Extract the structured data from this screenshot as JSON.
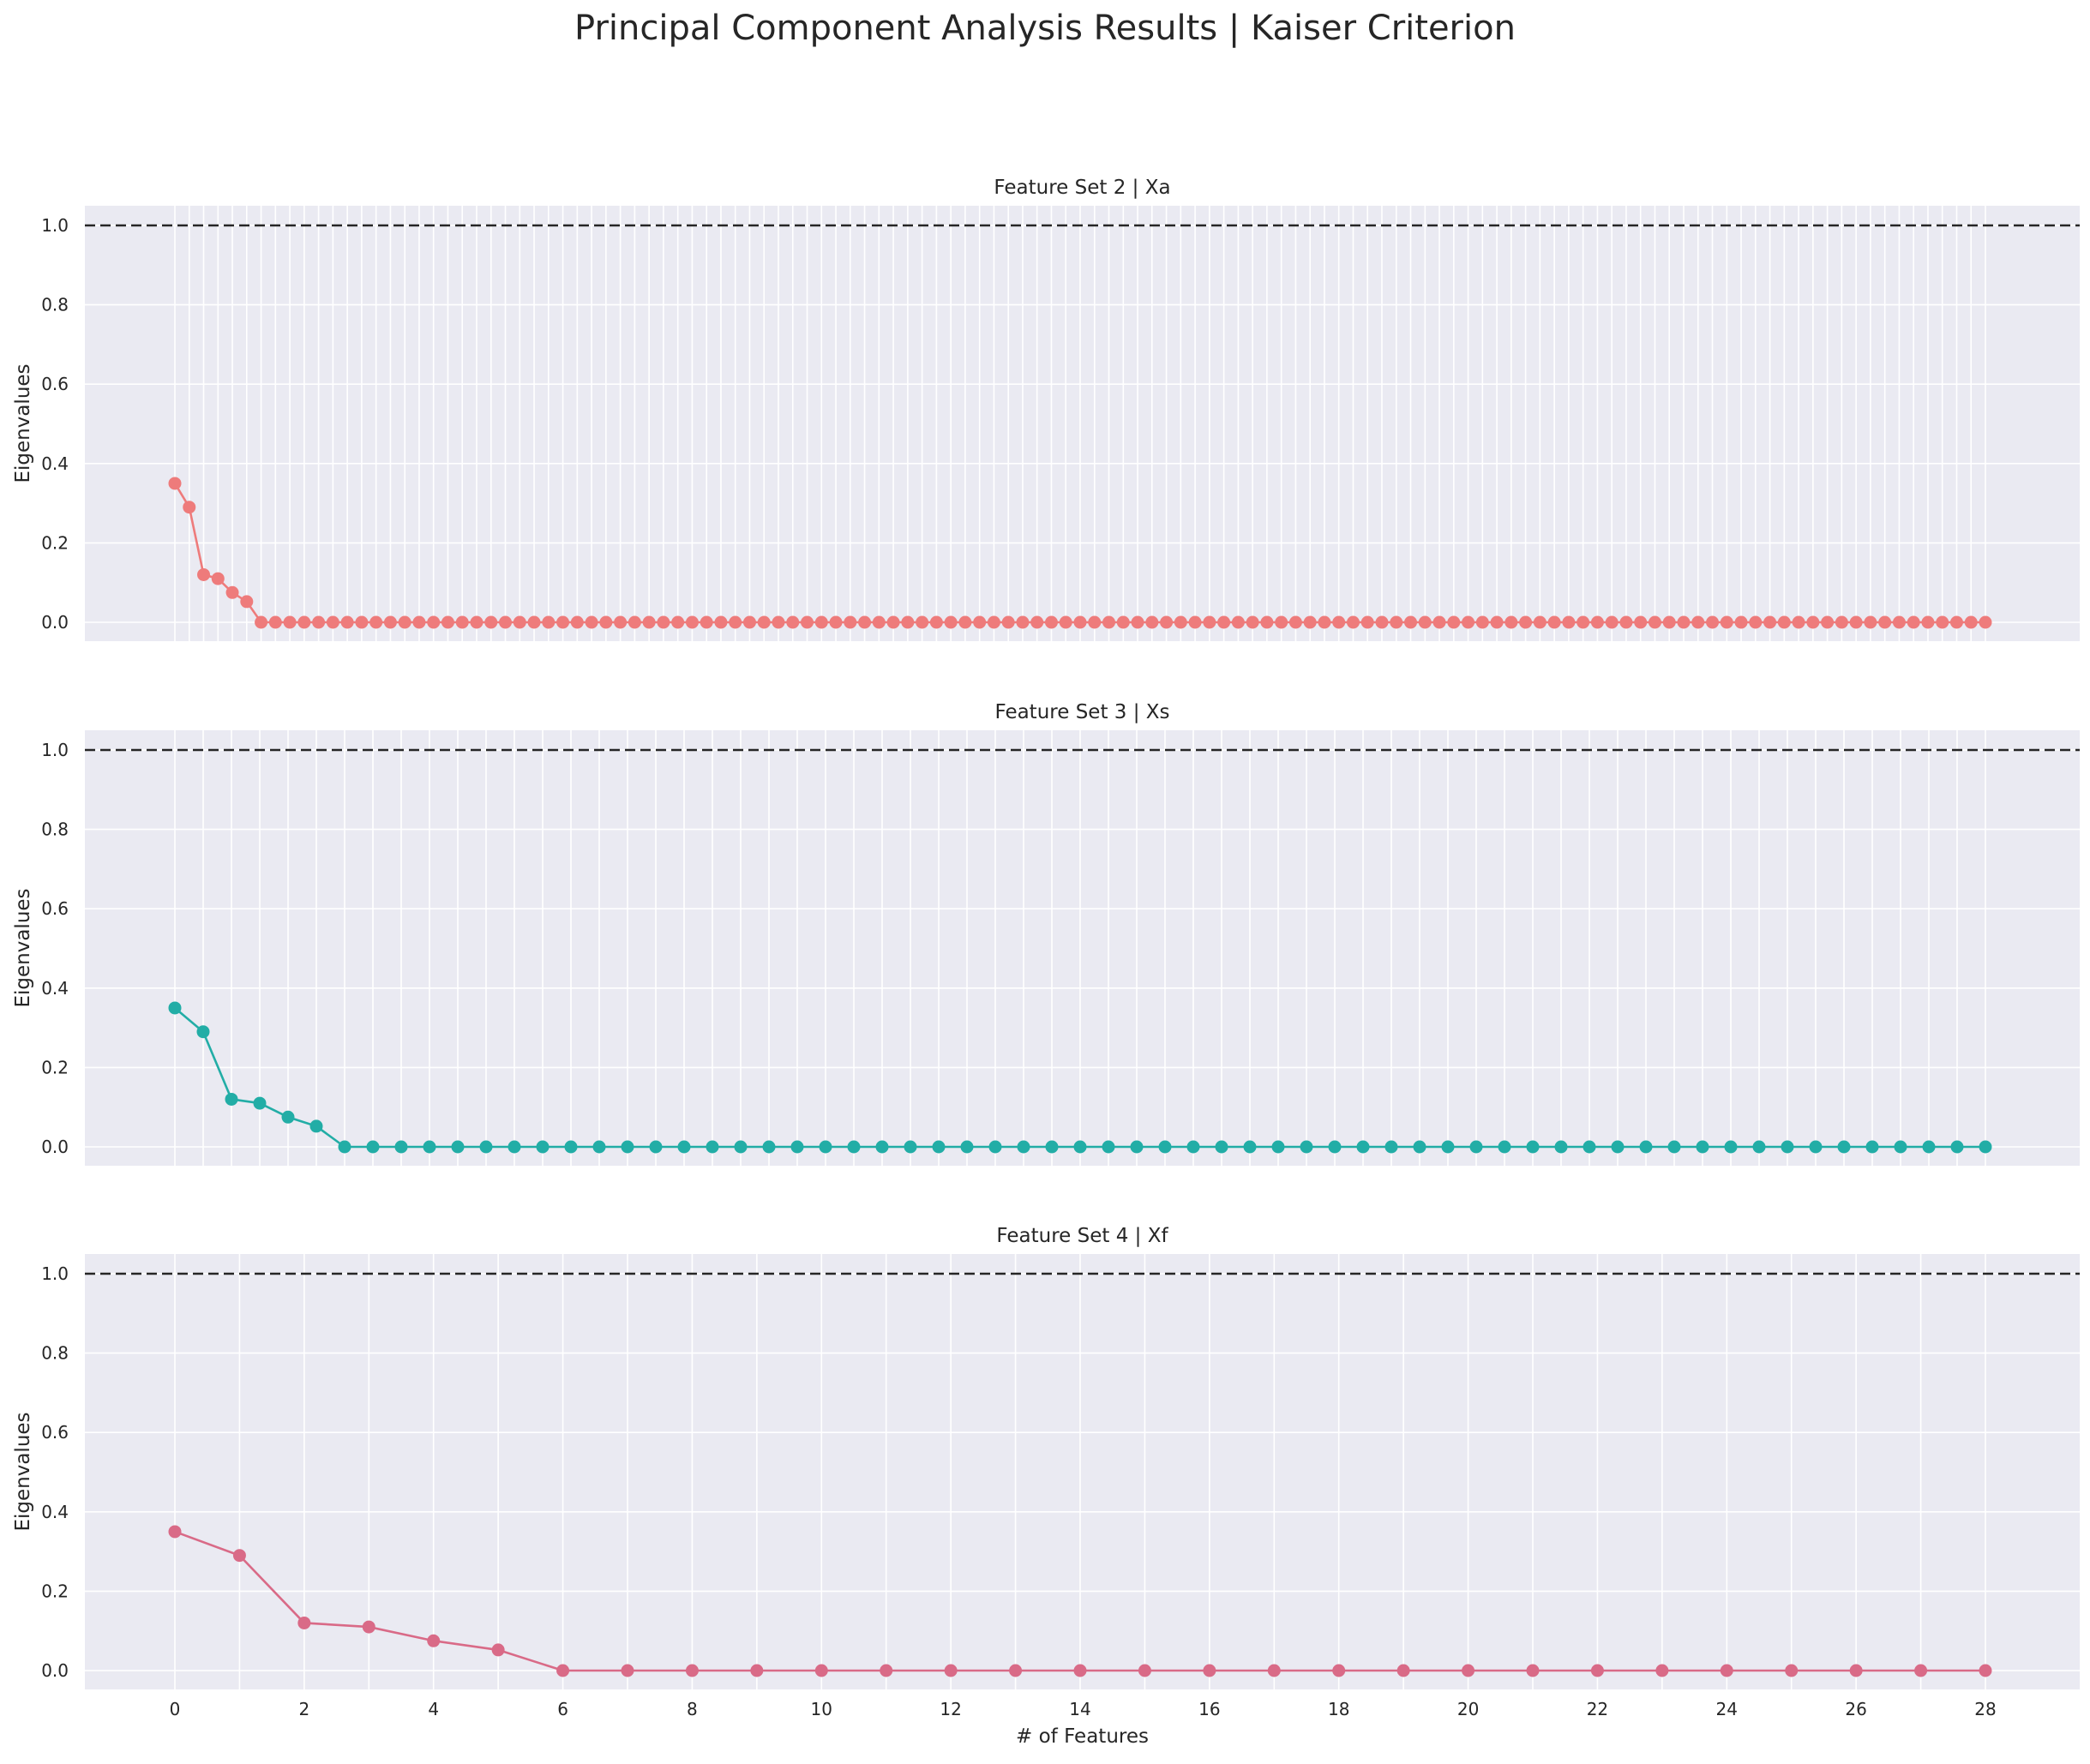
{
  "figure": {
    "title": "Principal Component Analysis Results | Kaiser Criterion",
    "xlabel": "# of Features",
    "threshold": 1.0,
    "background": "#eaeaf2",
    "grid_color": "#ffffff",
    "threshold_color": "#262626"
  },
  "chart_data": [
    {
      "type": "line",
      "title": "Feature Set 2 | Xa",
      "ylabel": "Eigenvalues",
      "xlabel": "",
      "color": "#ee7b7b",
      "x_count": 127,
      "x_end": 28,
      "x_ticks": [],
      "ylim": [
        -0.05,
        1.05
      ],
      "y_ticks": [
        "0.0",
        "0.2",
        "0.4",
        "0.6",
        "0.8",
        "1.0"
      ],
      "grid": true,
      "values": [
        0.35,
        0.29,
        0.12,
        0.11,
        0.075,
        0.052,
        0,
        0,
        0,
        0,
        0,
        0,
        0,
        0,
        0,
        0,
        0,
        0,
        0,
        0,
        0,
        0,
        0,
        0,
        0,
        0,
        0,
        0,
        0,
        0,
        0,
        0,
        0,
        0,
        0,
        0,
        0,
        0,
        0,
        0,
        0,
        0,
        0,
        0,
        0,
        0,
        0,
        0,
        0,
        0,
        0,
        0,
        0,
        0,
        0,
        0,
        0,
        0,
        0,
        0,
        0,
        0,
        0,
        0,
        0,
        0,
        0,
        0,
        0,
        0,
        0,
        0,
        0,
        0,
        0,
        0,
        0,
        0,
        0,
        0,
        0,
        0,
        0,
        0,
        0,
        0,
        0,
        0,
        0,
        0,
        0,
        0,
        0,
        0,
        0,
        0,
        0,
        0,
        0,
        0,
        0,
        0,
        0,
        0,
        0,
        0,
        0,
        0,
        0,
        0,
        0,
        0,
        0,
        0,
        0,
        0,
        0,
        0,
        0,
        0,
        0,
        0,
        0,
        0,
        0,
        0,
        0
      ]
    },
    {
      "type": "line",
      "title": "Feature Set 3 | Xs",
      "ylabel": "Eigenvalues",
      "xlabel": "",
      "color": "#22ada6",
      "x_count": 65,
      "x_end": 28,
      "x_ticks": [],
      "ylim": [
        -0.05,
        1.05
      ],
      "y_ticks": [
        "0.0",
        "0.2",
        "0.4",
        "0.6",
        "0.8",
        "1.0"
      ],
      "grid": true,
      "values": [
        0.35,
        0.29,
        0.12,
        0.11,
        0.075,
        0.052,
        0,
        0,
        0,
        0,
        0,
        0,
        0,
        0,
        0,
        0,
        0,
        0,
        0,
        0,
        0,
        0,
        0,
        0,
        0,
        0,
        0,
        0,
        0,
        0,
        0,
        0,
        0,
        0,
        0,
        0,
        0,
        0,
        0,
        0,
        0,
        0,
        0,
        0,
        0,
        0,
        0,
        0,
        0,
        0,
        0,
        0,
        0,
        0,
        0,
        0,
        0,
        0,
        0,
        0,
        0,
        0,
        0,
        0,
        0
      ]
    },
    {
      "type": "line",
      "title": "Feature Set 4 | Xf",
      "ylabel": "Eigenvalues",
      "xlabel": "# of Features",
      "color": "#d96a87",
      "x_count": 29,
      "x_end": 28,
      "x_ticks": [
        "0",
        "2",
        "4",
        "6",
        "8",
        "10",
        "12",
        "14",
        "16",
        "18",
        "20",
        "22",
        "24",
        "26",
        "28"
      ],
      "ylim": [
        -0.05,
        1.05
      ],
      "y_ticks": [
        "0.0",
        "0.2",
        "0.4",
        "0.6",
        "0.8",
        "1.0"
      ],
      "grid": true,
      "values": [
        0.35,
        0.29,
        0.12,
        0.11,
        0.075,
        0.052,
        0,
        0,
        0,
        0,
        0,
        0,
        0,
        0,
        0,
        0,
        0,
        0,
        0,
        0,
        0,
        0,
        0,
        0,
        0,
        0,
        0,
        0,
        0
      ]
    }
  ]
}
